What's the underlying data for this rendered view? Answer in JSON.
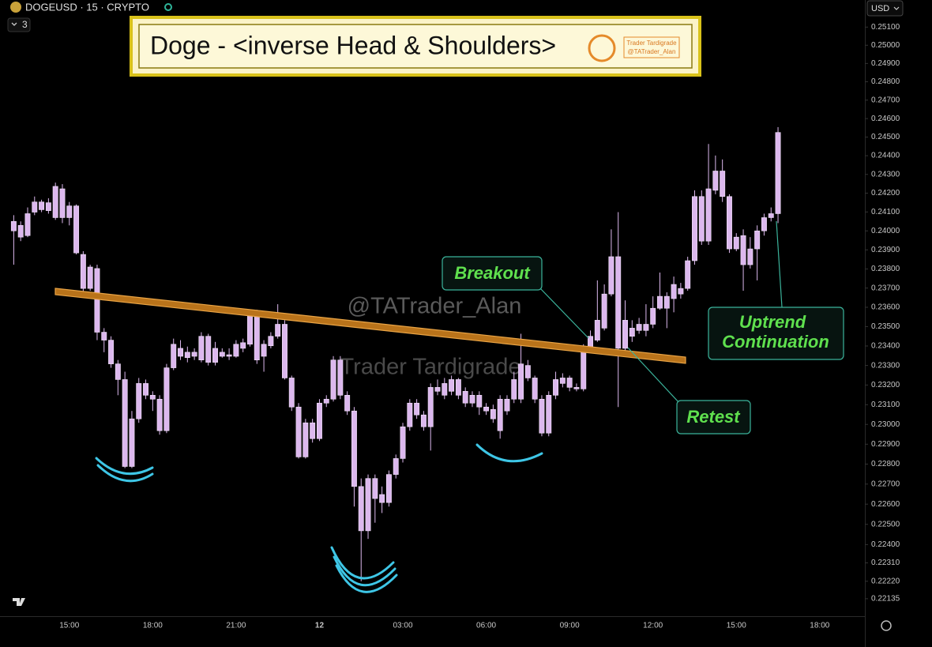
{
  "header": {
    "symbol": "DOGEUSD · 15 · CRYPTO",
    "interval_count": "3",
    "currency": "USD"
  },
  "chart_data": {
    "type": "candlestick",
    "title": "Doge - <inverse Head & Shoulders>",
    "badge": [
      "Trader Tardigrade",
      "@TATrader_Alan"
    ],
    "watermarks": [
      "@TATrader_Alan",
      "Trader Tardigrade"
    ],
    "annotations": [
      "Breakout",
      "Retest",
      [
        "Uptrend",
        "Continuation"
      ]
    ],
    "color": "#dcb8ee",
    "log_scale": true,
    "grid": false,
    "categories": [
      null,
      null,
      null,
      null,
      null,
      null,
      null,
      null,
      "15:00",
      null,
      null,
      null,
      null,
      null,
      null,
      null,
      null,
      null,
      null,
      null,
      "18:00",
      null,
      null,
      null,
      null,
      null,
      null,
      null,
      null,
      null,
      null,
      null,
      "21:00",
      null,
      null,
      null,
      null,
      null,
      null,
      null,
      null,
      null,
      null,
      null,
      "12",
      null,
      null,
      null,
      null,
      null,
      null,
      null,
      null,
      null,
      null,
      null,
      "03:00",
      null,
      null,
      null,
      null,
      null,
      null,
      null,
      null,
      null,
      null,
      null,
      "06:00",
      null,
      null,
      null,
      null,
      null,
      null,
      null,
      null,
      null,
      null,
      null,
      "09:00",
      null,
      null,
      null,
      null,
      null,
      null,
      null,
      null,
      null,
      null,
      null,
      "12:00",
      null,
      null,
      null,
      null,
      null,
      null,
      null,
      null,
      null,
      null,
      null,
      "15:00",
      null,
      null,
      null,
      null,
      null,
      null,
      null,
      null,
      null,
      null,
      null,
      "18:00",
      null,
      null,
      null,
      null,
      null,
      null
    ],
    "open": [
      0.2405,
      0.23967,
      0.23975,
      0.24099,
      0.24153,
      0.24107,
      0.2407,
      0.24223,
      0.2407,
      0.24132,
      0.23876,
      0.23698,
      0.23802,
      0.23471,
      0.2343,
      0.23308,
      0.23228,
      0.22788,
      0.23028,
      0.23208,
      0.23148,
      0.23128,
      0.22968,
      0.23288,
      0.23388,
      0.2334,
      0.23368,
      0.23328,
      0.2345,
      0.23316,
      0.23368,
      0.23347,
      0.23347,
      0.23388,
      0.23409,
      0.23574,
      0.23347,
      0.23401,
      0.2345,
      0.23512,
      0.23236,
      0.23088,
      0.22836,
      0.23008,
      0.22928,
      0.23108,
      0.23128,
      0.23328,
      0.23148,
      0.23068,
      0.22688,
      0.22468,
      0.22728,
      0.22648,
      0.22608,
      0.22748,
      0.22828,
      0.22988,
      0.23108,
      0.23048,
      0.22988,
      0.23188,
      0.23148,
      0.23168,
      0.23228,
      0.23168,
      0.23108,
      0.23148,
      0.23088,
      0.23076,
      0.23128,
      0.23068,
      0.23128,
      0.23128,
      0.233,
      0.23236,
      0.23128,
      0.22956,
      0.23148,
      0.23208,
      0.23236,
      0.23188,
      0.2318,
      0.23388,
      0.2343,
      0.23492,
      0.23669,
      0.23864,
      0.23388,
      0.23492,
      0.2348,
      0.23512,
      0.23512,
      0.23595,
      0.23657,
      0.23645,
      0.23698,
      0.23698,
      0.23843,
      0.24182,
      0.23946,
      0.24215,
      0.24318,
      0.24182,
      0.23905,
      0.23975,
      0.23822,
      0.23905,
      0.24,
      0.2407,
      0.24091,
      null,
      null,
      null,
      null,
      null,
      null,
      null,
      null,
      null,
      null,
      null,
      null
    ],
    "high": [
      0.24083,
      0.2405,
      0.24124,
      0.24182,
      0.24165,
      0.24173,
      0.24256,
      0.24248,
      0.24153,
      0.2414,
      0.23893,
      0.23822,
      0.23822,
      0.23492,
      0.2345,
      0.23328,
      0.23268,
      0.23068,
      0.23236,
      0.23228,
      0.23168,
      0.23148,
      0.23308,
      0.23438,
      0.2343,
      0.23397,
      0.23388,
      0.23471,
      0.23463,
      0.23421,
      0.23388,
      0.23388,
      0.2343,
      0.23438,
      0.23587,
      0.23587,
      0.2343,
      0.23471,
      0.23616,
      0.23533,
      0.23248,
      0.23108,
      0.23028,
      0.23028,
      0.23128,
      0.23148,
      0.23348,
      0.23348,
      0.23168,
      0.23088,
      0.22728,
      0.22748,
      0.22748,
      0.22688,
      0.22768,
      0.22848,
      0.23008,
      0.23128,
      0.23128,
      0.23068,
      0.23208,
      0.23228,
      0.23236,
      0.23248,
      0.23236,
      0.23188,
      0.23168,
      0.23168,
      0.23108,
      0.231,
      0.23148,
      0.23148,
      0.23268,
      0.23463,
      0.23328,
      0.23248,
      0.23148,
      0.23168,
      0.23268,
      0.2326,
      0.23248,
      0.23208,
      0.23409,
      0.2348,
      0.2374,
      0.23719,
      0.24008,
      0.24099,
      0.23636,
      0.23533,
      0.23545,
      0.23616,
      0.23657,
      0.23781,
      0.23678,
      0.2376,
      0.23727,
      0.23864,
      0.24215,
      0.24215,
      0.24463,
      0.24401,
      0.2438,
      0.24194,
      0.23988,
      0.24008,
      0.23967,
      0.24029,
      0.24091,
      0.24124,
      0.24554,
      null,
      null,
      null,
      null,
      null,
      null,
      null,
      null,
      null,
      null,
      null,
      null
    ],
    "low": [
      0.23822,
      0.23946,
      0.23967,
      0.24083,
      0.24099,
      0.24091,
      0.24058,
      0.24041,
      0.24029,
      0.23876,
      0.23678,
      0.23686,
      0.2343,
      0.23368,
      0.23288,
      0.23148,
      0.2278,
      0.2278,
      0.23008,
      0.23128,
      0.23068,
      0.22948,
      0.22956,
      0.23276,
      0.23328,
      0.23316,
      0.23328,
      0.23316,
      0.233,
      0.233,
      0.2334,
      0.23328,
      0.2334,
      0.23368,
      0.23397,
      0.23308,
      0.23268,
      0.23388,
      0.23438,
      0.23228,
      0.23068,
      0.22828,
      0.22828,
      0.22908,
      0.22916,
      0.23088,
      0.23116,
      0.23128,
      0.23048,
      0.22588,
      0.2222,
      0.22428,
      0.22508,
      0.22556,
      0.22588,
      0.22728,
      0.22808,
      0.22968,
      0.23028,
      0.22968,
      0.22868,
      0.23148,
      0.23128,
      0.23148,
      0.23128,
      0.23088,
      0.23088,
      0.23048,
      0.23048,
      0.23008,
      0.22928,
      0.23048,
      0.23108,
      0.23108,
      0.2322,
      0.23108,
      0.2294,
      0.2294,
      0.23128,
      0.23188,
      0.23168,
      0.23168,
      0.23168,
      0.23368,
      0.23421,
      0.2348,
      0.23657,
      0.23088,
      0.23368,
      0.23421,
      0.23463,
      0.2345,
      0.23492,
      0.23587,
      0.23492,
      0.23574,
      0.23645,
      0.23686,
      0.23822,
      0.23926,
      0.23926,
      0.24194,
      0.24153,
      0.23884,
      0.23893,
      0.23686,
      0.23802,
      0.2374,
      0.23975,
      0.2405,
      0.24041,
      null,
      null,
      null,
      null,
      null,
      null,
      null,
      null,
      null,
      null,
      null,
      null
    ],
    "close": [
      0.24,
      0.24029,
      0.24091,
      0.24153,
      0.24112,
      0.24149,
      0.24236,
      0.2407,
      0.24132,
      0.23884,
      0.23698,
      0.2381,
      0.23471,
      0.2343,
      0.23308,
      0.23228,
      0.22788,
      0.23028,
      0.23208,
      0.23148,
      0.23128,
      0.22968,
      0.23288,
      0.23409,
      0.23347,
      0.23368,
      0.23347,
      0.2345,
      0.23316,
      0.23388,
      0.23347,
      0.23355,
      0.23409,
      0.23417,
      0.23574,
      0.23328,
      0.23409,
      0.2345,
      0.23512,
      0.23236,
      0.23088,
      0.22836,
      0.23008,
      0.22928,
      0.23108,
      0.23128,
      0.23328,
      0.23148,
      0.23068,
      0.22688,
      0.22468,
      0.22728,
      0.22628,
      0.22608,
      0.22748,
      0.22828,
      0.22988,
      0.23108,
      0.23048,
      0.22988,
      0.23188,
      0.23168,
      0.23208,
      0.23228,
      0.23148,
      0.23108,
      0.23148,
      0.23088,
      0.23068,
      0.23028,
      0.22968,
      0.23128,
      0.23228,
      0.23308,
      0.23236,
      0.23128,
      0.22956,
      0.23148,
      0.23228,
      0.23236,
      0.23188,
      0.2318,
      0.23388,
      0.2345,
      0.23533,
      0.23669,
      0.23864,
      0.23388,
      0.23533,
      0.2345,
      0.23512,
      0.2348,
      0.23595,
      0.23657,
      0.23595,
      0.23719,
      0.23669,
      0.23843,
      0.24182,
      0.23946,
      0.24223,
      0.24318,
      0.24182,
      0.23905,
      0.23967,
      0.23822,
      0.23905,
      0.24,
      0.2407,
      0.24091,
      0.24525,
      null,
      null,
      null,
      null,
      null,
      null,
      null,
      null,
      null,
      null,
      null,
      null
    ],
    "ylim": [
      0.2205,
      0.2525
    ],
    "yticks": [
      {
        "value": 0.251,
        "label": "0.25100"
      },
      {
        "value": 0.25,
        "label": "0.25000"
      },
      {
        "value": 0.249,
        "label": "0.24900"
      },
      {
        "value": 0.248,
        "label": "0.24800"
      },
      {
        "value": 0.247,
        "label": "0.24700"
      },
      {
        "value": 0.246,
        "label": "0.24600"
      },
      {
        "value": 0.245,
        "label": "0.24500"
      },
      {
        "value": 0.244,
        "label": "0.24400"
      },
      {
        "value": 0.243,
        "label": "0.24300"
      },
      {
        "value": 0.242,
        "label": "0.24200"
      },
      {
        "value": 0.241,
        "label": "0.24100"
      },
      {
        "value": 0.24,
        "label": "0.24000"
      },
      {
        "value": 0.239,
        "label": "0.23900"
      },
      {
        "value": 0.238,
        "label": "0.23800"
      },
      {
        "value": 0.237,
        "label": "0.23700"
      },
      {
        "value": 0.236,
        "label": "0.23600"
      },
      {
        "value": 0.235,
        "label": "0.23500"
      },
      {
        "value": 0.234,
        "label": "0.23400"
      },
      {
        "value": 0.233,
        "label": "0.23300"
      },
      {
        "value": 0.232,
        "label": "0.23200"
      },
      {
        "value": 0.231,
        "label": "0.23100"
      },
      {
        "value": 0.23,
        "label": "0.23000"
      },
      {
        "value": 0.229,
        "label": "0.22900"
      },
      {
        "value": 0.228,
        "label": "0.22800"
      },
      {
        "value": 0.227,
        "label": "0.22700"
      },
      {
        "value": 0.226,
        "label": "0.22600"
      },
      {
        "value": 0.225,
        "label": "0.22500"
      },
      {
        "value": 0.224,
        "label": "0.22400"
      },
      {
        "value": 0.2231,
        "label": "0.22310"
      },
      {
        "value": 0.2222,
        "label": "0.22220"
      },
      0.22135
    ]
  }
}
